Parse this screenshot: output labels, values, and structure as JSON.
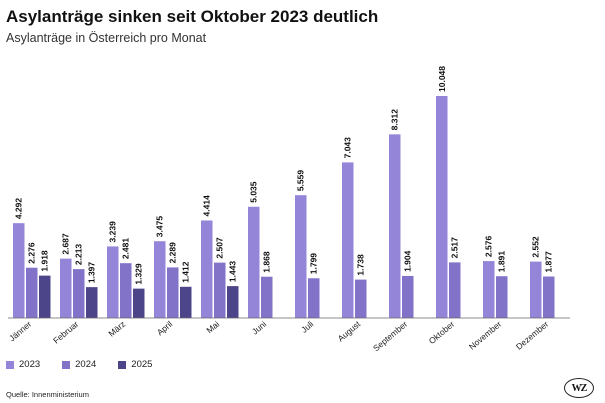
{
  "header": {
    "title": "Asylanträge sinken seit Oktober 2023 deutlich",
    "subtitle": "Asylanträge in Österreich pro Monat"
  },
  "footer": {
    "source": "Quelle: Innenministerium",
    "logo_text": "WZ"
  },
  "colors": {
    "2023": "#9485d8",
    "2024": "#8273c9",
    "2025": "#4d4589"
  },
  "chart_data": {
    "type": "bar",
    "title": "Asylanträge sinken seit Oktober 2023 deutlich",
    "subtitle": "Asylanträge in Österreich pro Monat",
    "xlabel": "",
    "ylabel": "",
    "ylim": [
      0,
      10048
    ],
    "grid": false,
    "legend": "bottom-left",
    "categories": [
      "Jänner",
      "Februar",
      "März",
      "April",
      "Mai",
      "Juni",
      "Juli",
      "August",
      "September",
      "Oktober",
      "November",
      "Dezember"
    ],
    "series": [
      {
        "name": "2023",
        "color": "#9485d8",
        "values": [
          4292,
          2687,
          3239,
          3475,
          4414,
          5035,
          5559,
          7043,
          8312,
          10048,
          2576,
          2552
        ],
        "labels": [
          "4.292",
          "2.687",
          "3.239",
          "3.475",
          "4.414",
          "5.035",
          "5.559",
          "7.043",
          "8.312",
          "10.048",
          "2.576",
          "2.552"
        ]
      },
      {
        "name": "2024",
        "color": "#8273c9",
        "values": [
          2276,
          2213,
          2481,
          2289,
          2507,
          1868,
          1799,
          1738,
          1904,
          2517,
          1891,
          1877
        ],
        "labels": [
          "2.276",
          "2.213",
          "2.481",
          "2.289",
          "2.507",
          "1.868",
          "1.799",
          "1.738",
          "1.904",
          "2.517",
          "1.891",
          "1.877"
        ]
      },
      {
        "name": "2025",
        "color": "#4d4589",
        "values": [
          1918,
          1397,
          1329,
          1412,
          1443,
          null,
          null,
          null,
          null,
          null,
          null,
          null
        ],
        "labels": [
          "1.918",
          "1.397",
          "1.329",
          "1.412",
          "1.443",
          null,
          null,
          null,
          null,
          null,
          null,
          null
        ]
      }
    ]
  }
}
